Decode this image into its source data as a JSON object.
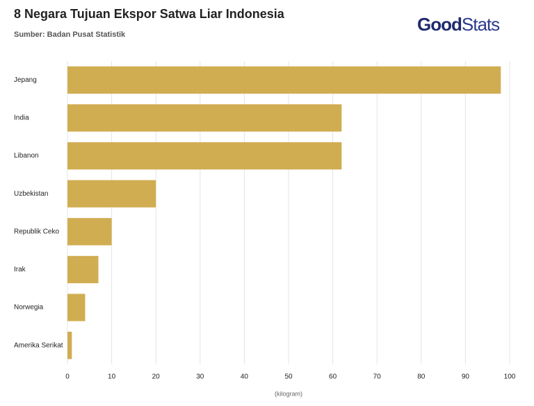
{
  "chart_data": {
    "type": "bar",
    "orientation": "horizontal",
    "title": "8 Negara Tujuan Ekspor Satwa Liar Indonesia",
    "subtitle": "Sumber: Badan Pusat Statistik",
    "logo_bold": "Good",
    "logo_light": "Stats",
    "x_label": "(kilogram)",
    "categories": [
      "Jepang",
      "India",
      "Libanon",
      "Uzbekistan",
      "Republik Ceko",
      "Irak",
      "Norwegia",
      "Amerika Serikat"
    ],
    "values": [
      98,
      62,
      62,
      20,
      10,
      7,
      4,
      1
    ],
    "color": "#d1ad52",
    "xlim": [
      0,
      100
    ],
    "xticks": [
      0,
      10,
      20,
      30,
      40,
      50,
      60,
      70,
      80,
      90,
      100
    ],
    "grid": true
  }
}
